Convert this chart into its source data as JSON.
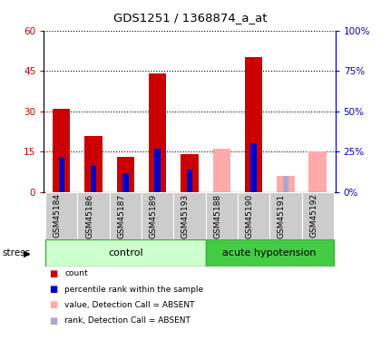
{
  "title": "GDS1251 / 1368874_a_at",
  "samples": [
    "GSM45184",
    "GSM45186",
    "GSM45187",
    "GSM45189",
    "GSM45193",
    "GSM45188",
    "GSM45190",
    "GSM45191",
    "GSM45192"
  ],
  "red_values": [
    31,
    21,
    13,
    44,
    14,
    0,
    50,
    0,
    0
  ],
  "blue_values": [
    21,
    16,
    12,
    27,
    14,
    0,
    30,
    0,
    0
  ],
  "pink_values": [
    0,
    0,
    0,
    0,
    0,
    16,
    0,
    6,
    15
  ],
  "lightblue_values": [
    0,
    0,
    0,
    0,
    0,
    0,
    0,
    10,
    0
  ],
  "absent_mask": [
    false,
    false,
    false,
    false,
    false,
    true,
    false,
    true,
    true
  ],
  "ylim_left": [
    0,
    60
  ],
  "ylim_right": [
    0,
    100
  ],
  "yticks_left": [
    0,
    15,
    30,
    45,
    60
  ],
  "ytick_labels_left": [
    "0",
    "15",
    "30",
    "45",
    "60"
  ],
  "yticks_right": [
    0,
    25,
    50,
    75,
    100
  ],
  "ytick_labels_right": [
    "0%",
    "25%",
    "50%",
    "75%",
    "100%"
  ],
  "red_color": "#cc0000",
  "blue_color": "#0000cc",
  "pink_color": "#ffaaaa",
  "lightblue_color": "#aaaacc",
  "group_label_control": "control",
  "group_label_acute": "acute hypotension",
  "stress_label": "stress",
  "legend_items": [
    "count",
    "percentile rank within the sample",
    "value, Detection Call = ABSENT",
    "rank, Detection Call = ABSENT"
  ],
  "legend_colors": [
    "#cc0000",
    "#0000cc",
    "#ffaaaa",
    "#aaaacc"
  ],
  "control_fill": "#ccffcc",
  "control_border": "#44aa44",
  "acute_fill": "#44cc44",
  "acute_border": "#44aa44",
  "tick_bg_color": "#cccccc",
  "left_axis_color": "#cc0000",
  "right_axis_color": "#0000cc",
  "n_control": 5,
  "n_acute": 4
}
